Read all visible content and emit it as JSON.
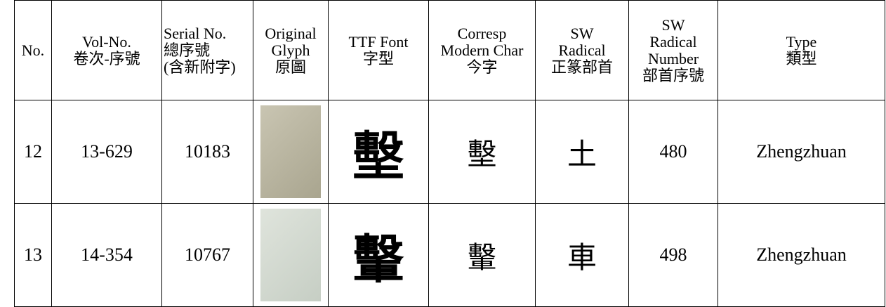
{
  "table": {
    "header": [
      [
        "No."
      ],
      [
        "Vol-No.",
        "卷次-序號"
      ],
      [
        "Serial No.",
        "總序號",
        "(含新附字)"
      ],
      [
        "Original",
        "Glyph",
        "原圖"
      ],
      [
        "TTF Font",
        "字型"
      ],
      [
        "Corresp",
        "Modern Char",
        "今字"
      ],
      [
        "SW",
        "Radical",
        "正篆部首"
      ],
      [
        "SW",
        "Radical",
        "Number",
        "部首序號"
      ],
      [
        "Type",
        "類型"
      ]
    ],
    "rows": [
      [
        "12",
        "13-629",
        "10183",
        null,
        "墼",
        "墼",
        "土",
        "480",
        "Zhengzhuan"
      ],
      [
        "13",
        "14-354",
        "10767",
        null,
        "轚",
        "轚",
        "車",
        "498",
        "Zhengzhuan"
      ]
    ]
  }
}
